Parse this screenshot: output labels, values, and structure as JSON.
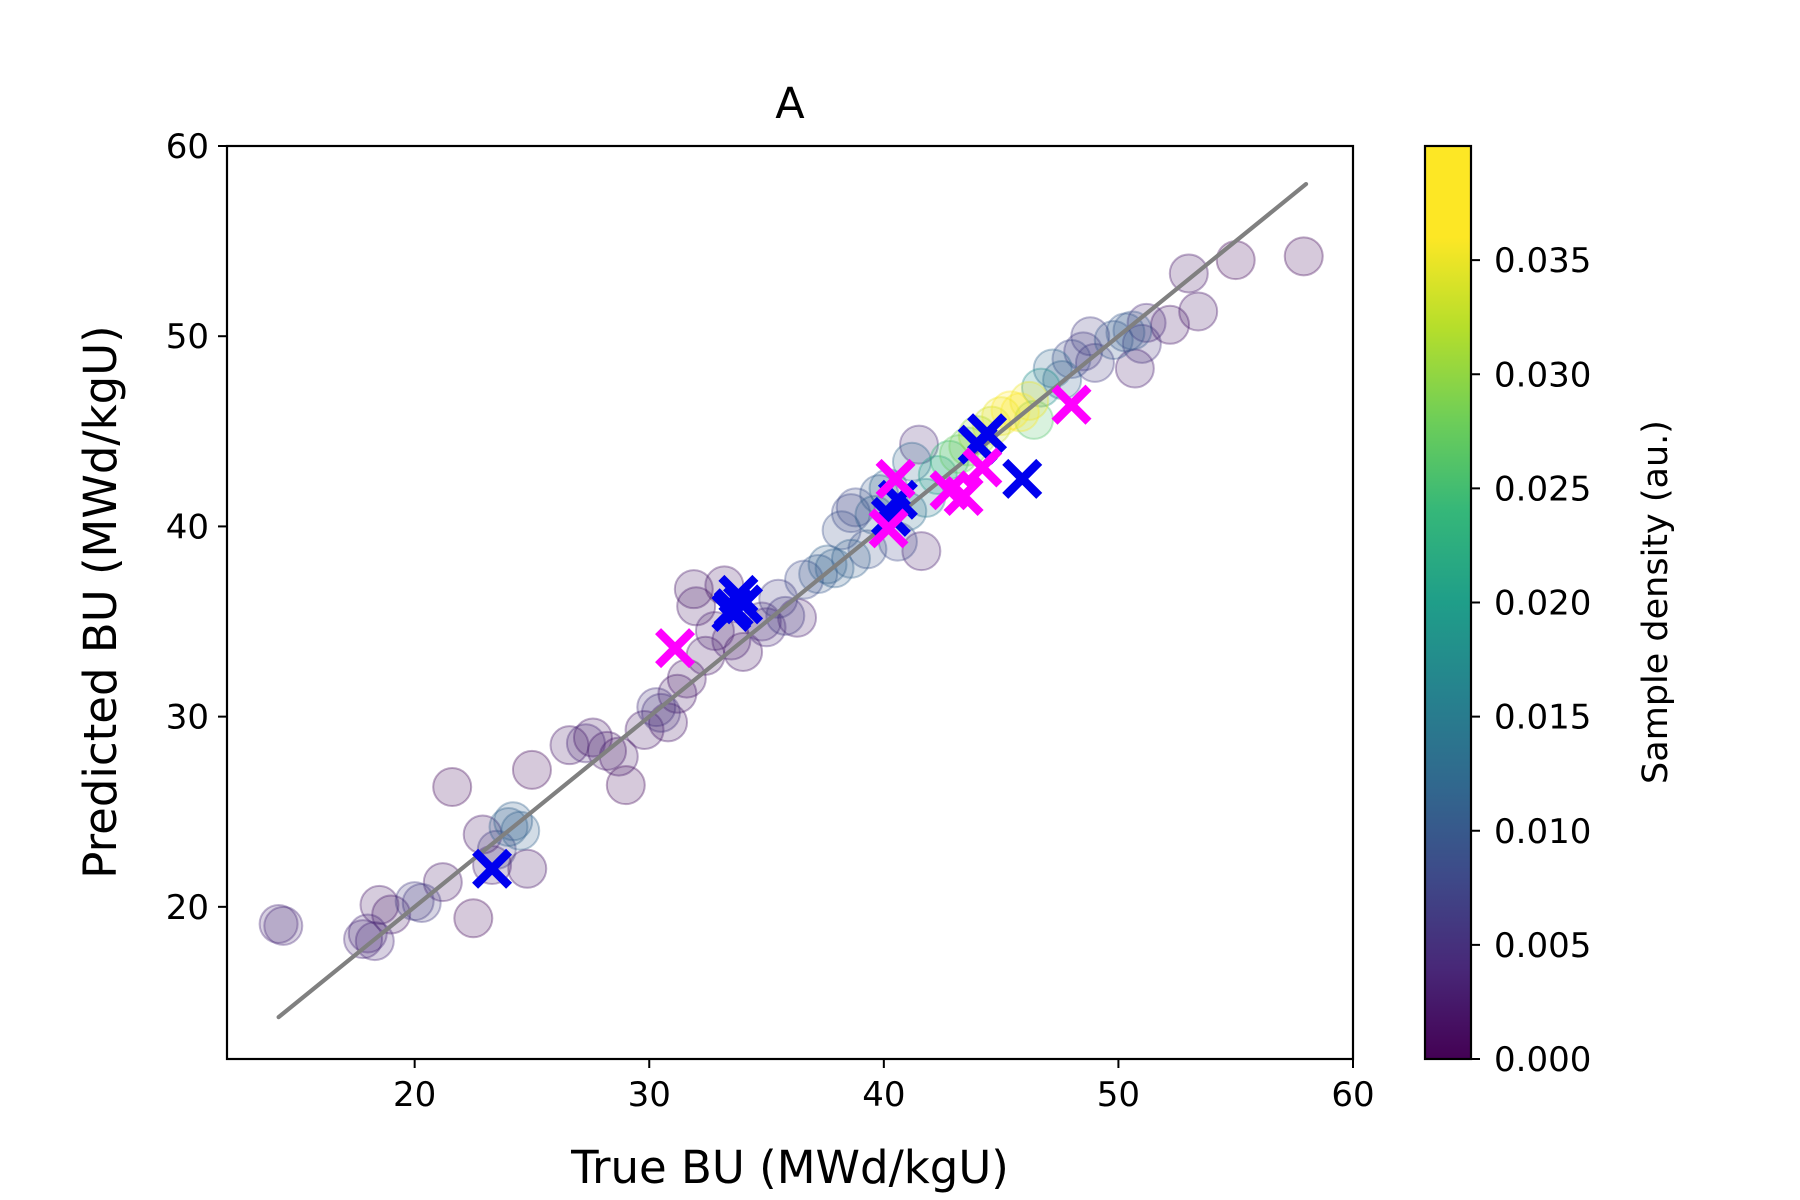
{
  "chart_data": {
    "type": "scatter",
    "title": "A",
    "xlabel": "True BU (MWd/kgU)",
    "ylabel": "Predicted BU (MWd/kgU)",
    "xlim": [
      12,
      60
    ],
    "ylim": [
      12,
      60
    ],
    "xticks": [
      20,
      30,
      40,
      50,
      60
    ],
    "yticks": [
      20,
      30,
      40,
      50,
      60
    ],
    "grid": false,
    "colormap": "viridis",
    "colorbar": {
      "label": "Sample density (au.)",
      "range": [
        0.0,
        0.04
      ],
      "ticks": [
        "0.000",
        "0.005",
        "0.010",
        "0.015",
        "0.020",
        "0.025",
        "0.030",
        "0.035"
      ],
      "tick_values": [
        0.0,
        0.005,
        0.01,
        0.015,
        0.02,
        0.025,
        0.03,
        0.035
      ]
    },
    "identity_line": {
      "x": [
        14.2,
        58.0
      ],
      "y": [
        14.2,
        58.0
      ],
      "color": "#808080"
    },
    "series": [
      {
        "marker": "circle",
        "points": [
          [
            14.2,
            19.1,
            0.004
          ],
          [
            14.4,
            19.0,
            0.004
          ],
          [
            17.8,
            18.3,
            0.004
          ],
          [
            18.0,
            18.6,
            0.004
          ],
          [
            18.3,
            18.2,
            0.004
          ],
          [
            18.5,
            20.1,
            0.002
          ],
          [
            19.0,
            19.6,
            0.002
          ],
          [
            20.0,
            20.3,
            0.006
          ],
          [
            20.3,
            20.2,
            0.006
          ],
          [
            21.2,
            21.3,
            0.002
          ],
          [
            21.6,
            26.3,
            0.001
          ],
          [
            22.5,
            19.4,
            0.001
          ],
          [
            22.9,
            23.8,
            0.002
          ],
          [
            23.3,
            22.2,
            0.003
          ],
          [
            23.5,
            23.0,
            0.006
          ],
          [
            24.0,
            24.2,
            0.011
          ],
          [
            24.2,
            24.5,
            0.011
          ],
          [
            24.5,
            24.0,
            0.011
          ],
          [
            24.8,
            22.0,
            0.002
          ],
          [
            25.0,
            27.2,
            0.001
          ],
          [
            26.6,
            28.5,
            0.002
          ],
          [
            27.3,
            28.6,
            0.004
          ],
          [
            27.6,
            28.9,
            0.002
          ],
          [
            28.2,
            28.2,
            0.002
          ],
          [
            28.7,
            27.9,
            0.002
          ],
          [
            29.0,
            26.4,
            0.001
          ],
          [
            29.8,
            29.3,
            0.002
          ],
          [
            30.3,
            30.5,
            0.005
          ],
          [
            30.5,
            30.2,
            0.005
          ],
          [
            30.8,
            29.7,
            0.002
          ],
          [
            31.2,
            31.2,
            0.002
          ],
          [
            31.6,
            32.0,
            0.002
          ],
          [
            31.9,
            36.7,
            0.002
          ],
          [
            32.0,
            35.8,
            0.002
          ],
          [
            32.4,
            33.2,
            0.002
          ],
          [
            32.8,
            34.5,
            0.003
          ],
          [
            33.2,
            36.9,
            0.002
          ],
          [
            33.5,
            34.0,
            0.003
          ],
          [
            34.0,
            33.4,
            0.002
          ],
          [
            34.8,
            35.0,
            0.004
          ],
          [
            35.0,
            34.7,
            0.004
          ],
          [
            35.5,
            36.2,
            0.006
          ],
          [
            35.8,
            35.3,
            0.006
          ],
          [
            36.3,
            35.2,
            0.003
          ],
          [
            36.6,
            37.2,
            0.008
          ],
          [
            37.2,
            37.5,
            0.01
          ],
          [
            37.6,
            38.0,
            0.011
          ],
          [
            37.9,
            37.8,
            0.011
          ],
          [
            38.2,
            39.8,
            0.009
          ],
          [
            38.6,
            38.3,
            0.011
          ],
          [
            38.6,
            40.7,
            0.008
          ],
          [
            38.8,
            41.0,
            0.008
          ],
          [
            39.3,
            38.8,
            0.009
          ],
          [
            39.6,
            40.6,
            0.011
          ],
          [
            39.8,
            41.7,
            0.01
          ],
          [
            40.2,
            42.0,
            0.012
          ],
          [
            40.6,
            39.2,
            0.008
          ],
          [
            41.0,
            40.8,
            0.013
          ],
          [
            41.2,
            43.4,
            0.012
          ],
          [
            41.5,
            44.3,
            0.004
          ],
          [
            41.6,
            38.7,
            0.003
          ],
          [
            41.8,
            41.5,
            0.015
          ],
          [
            42.3,
            42.7,
            0.02
          ],
          [
            42.8,
            43.5,
            0.024
          ],
          [
            43.2,
            43.8,
            0.027
          ],
          [
            43.6,
            44.2,
            0.028
          ],
          [
            44.0,
            44.8,
            0.03
          ],
          [
            44.6,
            45.3,
            0.033
          ],
          [
            45.0,
            45.8,
            0.035
          ],
          [
            45.4,
            46.1,
            0.038
          ],
          [
            45.8,
            46.0,
            0.039
          ],
          [
            46.2,
            46.6,
            0.035
          ],
          [
            46.4,
            45.6,
            0.026
          ],
          [
            46.7,
            47.3,
            0.018
          ],
          [
            47.2,
            48.3,
            0.012
          ],
          [
            47.6,
            47.7,
            0.011
          ],
          [
            48.0,
            48.8,
            0.008
          ],
          [
            48.5,
            49.2,
            0.006
          ],
          [
            48.8,
            50.0,
            0.006
          ],
          [
            49.0,
            48.6,
            0.006
          ],
          [
            49.8,
            49.8,
            0.01
          ],
          [
            50.3,
            50.2,
            0.01
          ],
          [
            50.6,
            50.3,
            0.01
          ],
          [
            50.7,
            48.3,
            0.003
          ],
          [
            51.0,
            49.6,
            0.005
          ],
          [
            51.2,
            50.7,
            0.004
          ],
          [
            52.2,
            50.6,
            0.002
          ],
          [
            53.0,
            53.3,
            0.002
          ],
          [
            53.4,
            51.3,
            0.002
          ],
          [
            55.0,
            54.0,
            0.001
          ],
          [
            57.9,
            54.2,
            0.001
          ]
        ]
      },
      {
        "marker": "cross",
        "color": "#0000ee",
        "points": [
          [
            23.3,
            22.0
          ],
          [
            33.5,
            35.5
          ],
          [
            33.8,
            36.4
          ],
          [
            33.6,
            35.7
          ],
          [
            34.0,
            35.9
          ],
          [
            40.3,
            40.5
          ],
          [
            40.6,
            41.4
          ],
          [
            44.0,
            44.3
          ],
          [
            44.4,
            44.9
          ],
          [
            45.9,
            42.5
          ]
        ]
      },
      {
        "marker": "cross",
        "color": "#ff00ff",
        "points": [
          [
            31.1,
            33.6
          ],
          [
            40.2,
            39.9
          ],
          [
            40.5,
            42.5
          ],
          [
            42.8,
            41.9
          ],
          [
            43.4,
            41.6
          ],
          [
            44.2,
            43.1
          ],
          [
            48.0,
            46.4
          ]
        ]
      }
    ]
  }
}
